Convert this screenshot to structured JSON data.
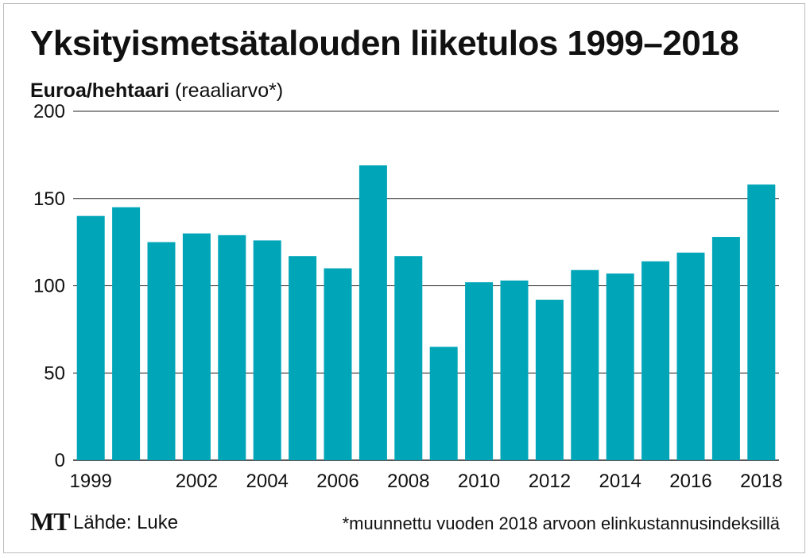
{
  "title": "Yksityismetsätalouden liiketulos 1999–2018",
  "subtitle_unit": "Euroa/hehtaari",
  "subtitle_note": "(reaaliarvo*)",
  "logo": "MT",
  "source": "Lähde: Luke",
  "footnote": "*muunnettu vuoden 2018 arvoon elinkustannusindeksillä",
  "colors": {
    "bar": "#00a6b8",
    "grid": "#222222",
    "text": "#111111"
  },
  "chart_data": {
    "type": "bar",
    "categories": [
      "1999",
      "2000",
      "2001",
      "2002",
      "2003",
      "2004",
      "2005",
      "2006",
      "2007",
      "2008",
      "2009",
      "2010",
      "2011",
      "2012",
      "2013",
      "2014",
      "2015",
      "2016",
      "2017",
      "2018"
    ],
    "values": [
      140,
      145,
      125,
      130,
      129,
      126,
      117,
      110,
      169,
      117,
      65,
      102,
      103,
      92,
      109,
      107,
      114,
      119,
      128,
      158
    ],
    "x_tick_labels": [
      "1999",
      "2002",
      "2004",
      "2006",
      "2008",
      "2010",
      "2012",
      "2014",
      "2016",
      "2018"
    ],
    "y_ticks": [
      0,
      50,
      100,
      150,
      200
    ],
    "ylim": [
      0,
      200
    ],
    "grid": true,
    "xlabel": "",
    "ylabel": ""
  }
}
